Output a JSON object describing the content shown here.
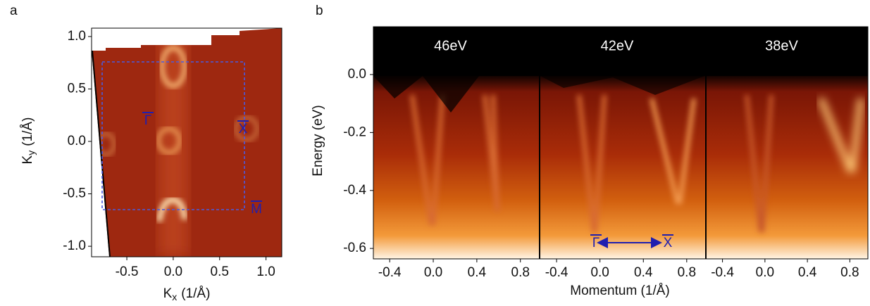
{
  "chart_data": [
    {
      "type": "heatmap",
      "panel_label": "a",
      "xlabel": {
        "symbol": "K",
        "subscript": "x",
        "unit": "(1/Å)"
      },
      "ylabel": {
        "symbol": "K",
        "subscript": "y",
        "unit": "(1/Å)"
      },
      "xlim": [
        -0.88,
        1.17
      ],
      "ylim": [
        -1.1,
        1.08
      ],
      "xticks": [
        -0.5,
        {
          "value": 0,
          "label": "0.0"
        },
        0.5,
        {
          "value": 1,
          "label": "1.0"
        }
      ],
      "yticks": [
        {
          "value": -1,
          "label": "-1.0"
        },
        -0.5,
        {
          "value": 0,
          "label": "0.0"
        },
        0.5,
        {
          "value": 1,
          "label": "1.0"
        }
      ],
      "annotations": [
        "Γ",
        "X",
        "M"
      ]
    },
    {
      "type": "heatmap",
      "panel_label": "b",
      "ylabel": "Energy (eV)",
      "xlabel": "Momentum (1/Å)",
      "ylim": [
        -0.636,
        0.165
      ],
      "yticks": [
        -0.6,
        -0.4,
        -0.2,
        {
          "value": 0,
          "label": "0.0"
        }
      ],
      "panels": [
        {
          "title": "46eV",
          "xlim": [
            -0.55,
            0.97
          ],
          "xticks": [
            -0.4,
            {
              "value": 0,
              "label": "0.0"
            },
            0.4,
            0.8
          ]
        },
        {
          "title": "42eV",
          "xlim": [
            -0.55,
            0.97
          ],
          "xticks": [
            -0.4,
            {
              "value": 0,
              "label": "0.0"
            },
            0.4,
            0.8
          ]
        },
        {
          "title": "38eV",
          "xlim": [
            -0.55,
            0.97
          ],
          "xticks": [
            -0.4,
            {
              "value": 0,
              "label": "0.0"
            },
            0.4,
            0.8
          ]
        }
      ],
      "annotations": [
        "Γ",
        "X"
      ]
    }
  ]
}
